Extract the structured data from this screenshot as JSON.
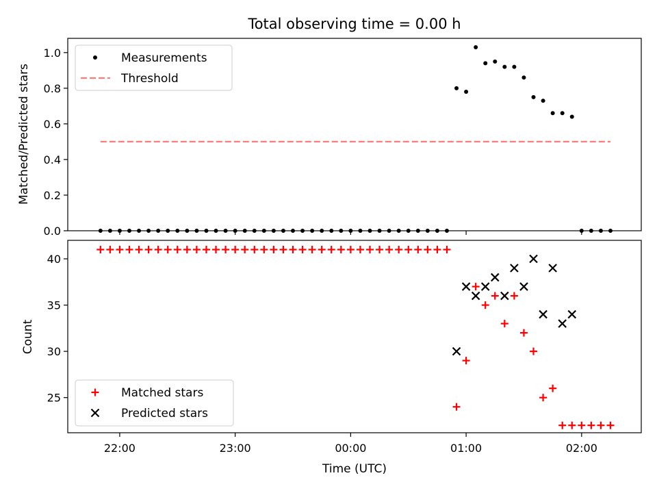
{
  "chart_data": [
    {
      "type": "scatter",
      "title": "Total observing time = 0.00 h",
      "ylabel": "Matched/Predicted stars",
      "ylim": [
        0,
        1.08
      ],
      "yticks": [
        0.0,
        0.2,
        0.4,
        0.6,
        0.8,
        1.0
      ],
      "ytick_labels": [
        "0.0",
        "0.2",
        "0.4",
        "0.6",
        "0.8",
        "1.0"
      ],
      "legend_position": "top-left",
      "grid": false,
      "series": [
        {
          "name": "Measurements",
          "marker": "dot",
          "color": "#000000",
          "x": [
            "21:50",
            "21:55",
            "21:60",
            "22:05",
            "22:10",
            "22:15",
            "22:20",
            "22:25",
            "22:30",
            "22:35",
            "22:40",
            "22:45",
            "22:50",
            "22:55",
            "23:00",
            "23:05",
            "23:10",
            "23:15",
            "23:20",
            "23:25",
            "23:30",
            "23:35",
            "23:40",
            "23:45",
            "23:50",
            "23:55",
            "00:00",
            "00:05",
            "00:10",
            "00:15",
            "00:20",
            "00:25",
            "00:30",
            "00:35",
            "00:40",
            "00:45",
            "00:50",
            "00:55",
            "01:00",
            "01:05",
            "01:10",
            "01:15",
            "01:20",
            "01:25",
            "01:30",
            "01:35",
            "01:40",
            "01:45",
            "01:50",
            "01:55",
            "02:00",
            "02:05",
            "02:10",
            "02:15"
          ],
          "y": [
            0,
            0,
            0,
            0,
            0,
            0,
            0,
            0,
            0,
            0,
            0,
            0,
            0,
            0,
            0,
            0,
            0,
            0,
            0,
            0,
            0,
            0,
            0,
            0,
            0,
            0,
            0,
            0,
            0,
            0,
            0,
            0,
            0,
            0,
            0,
            0,
            0,
            0.8,
            0.78,
            1.03,
            0.94,
            0.95,
            0.92,
            0.92,
            0.86,
            0.75,
            0.73,
            0.66,
            0.66,
            0.64,
            0,
            0,
            0,
            0
          ]
        },
        {
          "name": "Threshold",
          "line": "dashed",
          "color": "#ff7b7b",
          "x": [
            "21:50",
            "02:15"
          ],
          "y": [
            0.5,
            0.5
          ]
        }
      ]
    },
    {
      "type": "scatter",
      "xlabel": "Time (UTC)",
      "ylabel": "Count",
      "ylim": [
        21.2,
        42
      ],
      "yticks": [
        25,
        30,
        35,
        40
      ],
      "ytick_labels": [
        "25",
        "30",
        "35",
        "40"
      ],
      "xlim": [
        "21:33",
        "02:31"
      ],
      "xticks": [
        "22:00",
        "23:00",
        "00:00",
        "01:00",
        "02:00"
      ],
      "legend_position": "bottom-left",
      "grid": false,
      "series": [
        {
          "name": "Matched stars",
          "marker": "plus",
          "color": "#ff0000",
          "x": [
            "21:50",
            "21:55",
            "21:60",
            "22:05",
            "22:10",
            "22:15",
            "22:20",
            "22:25",
            "22:30",
            "22:35",
            "22:40",
            "22:45",
            "22:50",
            "22:55",
            "23:00",
            "23:05",
            "23:10",
            "23:15",
            "23:20",
            "23:25",
            "23:30",
            "23:35",
            "23:40",
            "23:45",
            "23:50",
            "23:55",
            "00:00",
            "00:05",
            "00:10",
            "00:15",
            "00:20",
            "00:25",
            "00:30",
            "00:35",
            "00:40",
            "00:45",
            "00:50",
            "00:55",
            "01:00",
            "01:05",
            "01:10",
            "01:15",
            "01:20",
            "01:25",
            "01:30",
            "01:35",
            "01:40",
            "01:45",
            "01:50",
            "01:55",
            "02:00",
            "02:05",
            "02:10",
            "02:15"
          ],
          "y": [
            41,
            41,
            41,
            41,
            41,
            41,
            41,
            41,
            41,
            41,
            41,
            41,
            41,
            41,
            41,
            41,
            41,
            41,
            41,
            41,
            41,
            41,
            41,
            41,
            41,
            41,
            41,
            41,
            41,
            41,
            41,
            41,
            41,
            41,
            41,
            41,
            41,
            24,
            29,
            37,
            35,
            36,
            33,
            36,
            32,
            30,
            25,
            26,
            22,
            22,
            22,
            22,
            22,
            22
          ]
        },
        {
          "name": "Predicted stars",
          "marker": "x",
          "color": "#000000",
          "x": [
            "00:55",
            "01:00",
            "01:05",
            "01:10",
            "01:15",
            "01:20",
            "01:25",
            "01:30",
            "01:35",
            "01:40",
            "01:45",
            "01:50",
            "01:55"
          ],
          "y": [
            30,
            37,
            36,
            37,
            38,
            36,
            39,
            37,
            40,
            34,
            39,
            33,
            34
          ]
        }
      ]
    }
  ]
}
